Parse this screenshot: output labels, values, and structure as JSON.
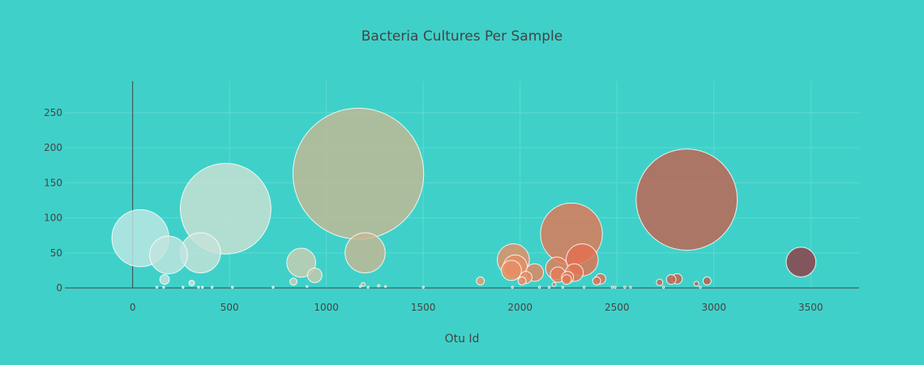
{
  "chart_data": {
    "type": "scatter",
    "title": "Bacteria Cultures Per Sample",
    "xlabel": "Otu Id",
    "ylabel": "",
    "xlim": [
      -350,
      3750
    ],
    "ylim": [
      0,
      295
    ],
    "xticks": [
      0,
      500,
      1000,
      1500,
      2000,
      2500,
      3000,
      3500
    ],
    "yticks": [
      0,
      50,
      100,
      150,
      200,
      250
    ],
    "grid": true,
    "legend": "none",
    "marker_size": "proportional to y value",
    "colors": {
      "background": "#3fd1c9",
      "scale": [
        "#bde6e6",
        "#cde0cf",
        "#c4b894",
        "#e8a070",
        "#e27050",
        "#c06050",
        "#8c3845"
      ]
    },
    "points": [
      {
        "x": 40,
        "y": 71
      },
      {
        "x": 165,
        "y": 12
      },
      {
        "x": 185,
        "y": 47
      },
      {
        "x": 305,
        "y": 7
      },
      {
        "x": 350,
        "y": 50
      },
      {
        "x": 480,
        "y": 113
      },
      {
        "x": 830,
        "y": 9
      },
      {
        "x": 870,
        "y": 36
      },
      {
        "x": 940,
        "y": 18
      },
      {
        "x": 1165,
        "y": 163
      },
      {
        "x": 1190,
        "y": 5
      },
      {
        "x": 1200,
        "y": 50
      },
      {
        "x": 1270,
        "y": 3
      },
      {
        "x": 1795,
        "y": 10
      },
      {
        "x": 1965,
        "y": 40
      },
      {
        "x": 1975,
        "y": 30
      },
      {
        "x": 1955,
        "y": 25
      },
      {
        "x": 2010,
        "y": 10
      },
      {
        "x": 2030,
        "y": 15
      },
      {
        "x": 2075,
        "y": 22
      },
      {
        "x": 2175,
        "y": 5
      },
      {
        "x": 2190,
        "y": 28
      },
      {
        "x": 2195,
        "y": 19
      },
      {
        "x": 2240,
        "y": 12
      },
      {
        "x": 2245,
        "y": 15
      },
      {
        "x": 2265,
        "y": 77
      },
      {
        "x": 2280,
        "y": 22
      },
      {
        "x": 2320,
        "y": 40
      },
      {
        "x": 2395,
        "y": 10
      },
      {
        "x": 2415,
        "y": 13
      },
      {
        "x": 2720,
        "y": 8
      },
      {
        "x": 2780,
        "y": 12
      },
      {
        "x": 2810,
        "y": 13
      },
      {
        "x": 2860,
        "y": 126
      },
      {
        "x": 2910,
        "y": 6
      },
      {
        "x": 2965,
        "y": 10
      },
      {
        "x": 3450,
        "y": 37
      },
      {
        "x": 125,
        "y": 1
      },
      {
        "x": 160,
        "y": 1
      },
      {
        "x": 260,
        "y": 1
      },
      {
        "x": 340,
        "y": 1
      },
      {
        "x": 360,
        "y": 1
      },
      {
        "x": 410,
        "y": 1
      },
      {
        "x": 515,
        "y": 1
      },
      {
        "x": 725,
        "y": 1
      },
      {
        "x": 900,
        "y": 2
      },
      {
        "x": 1175,
        "y": 2
      },
      {
        "x": 1215,
        "y": 1
      },
      {
        "x": 1305,
        "y": 2
      },
      {
        "x": 1500,
        "y": 1
      },
      {
        "x": 1960,
        "y": 1
      },
      {
        "x": 2100,
        "y": 1
      },
      {
        "x": 2150,
        "y": 1
      },
      {
        "x": 2220,
        "y": 1
      },
      {
        "x": 2330,
        "y": 1
      },
      {
        "x": 2475,
        "y": 1
      },
      {
        "x": 2490,
        "y": 1
      },
      {
        "x": 2540,
        "y": 1
      },
      {
        "x": 2570,
        "y": 1
      },
      {
        "x": 2740,
        "y": 1
      },
      {
        "x": 2930,
        "y": 1
      }
    ]
  }
}
